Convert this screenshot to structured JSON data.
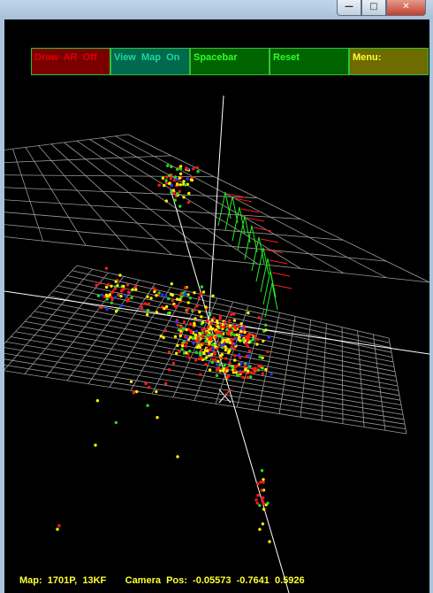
{
  "window": {
    "title_ghosts": [
      "",
      "",
      ""
    ],
    "buttons": [
      {
        "name": "minimize",
        "glyph": "—"
      },
      {
        "name": "maximize",
        "glyph": "□"
      },
      {
        "name": "close",
        "glyph": "✕"
      }
    ]
  },
  "menu": [
    {
      "label": "Draw  AR  Off",
      "text_color": "#e00000",
      "bg": "#7a0000"
    },
    {
      "label": "View  Map  On",
      "text_color": "#1fd6a0",
      "bg": "#006a4d"
    },
    {
      "label": "Spacebar",
      "text_color": "#2cff2c",
      "bg": "#006400"
    },
    {
      "label": "Reset",
      "text_color": "#2cff2c",
      "bg": "#006400"
    },
    {
      "label": "Menu:",
      "text_color": "#ffff33",
      "bg": "#6c6c00"
    }
  ],
  "status": {
    "text": "Map:  1701P,  13KF       Camera  Pos:  -0.05573  -0.7641  0.5926",
    "color": "#ffff33"
  },
  "colors": {
    "grid": "#9a9a9a",
    "axis": "#ffffff",
    "point_red": "#ff1a1a",
    "point_yellow": "#ffee00",
    "point_green": "#22dd22",
    "point_blue": "#2233ff",
    "keyframe": "#22ee22"
  }
}
